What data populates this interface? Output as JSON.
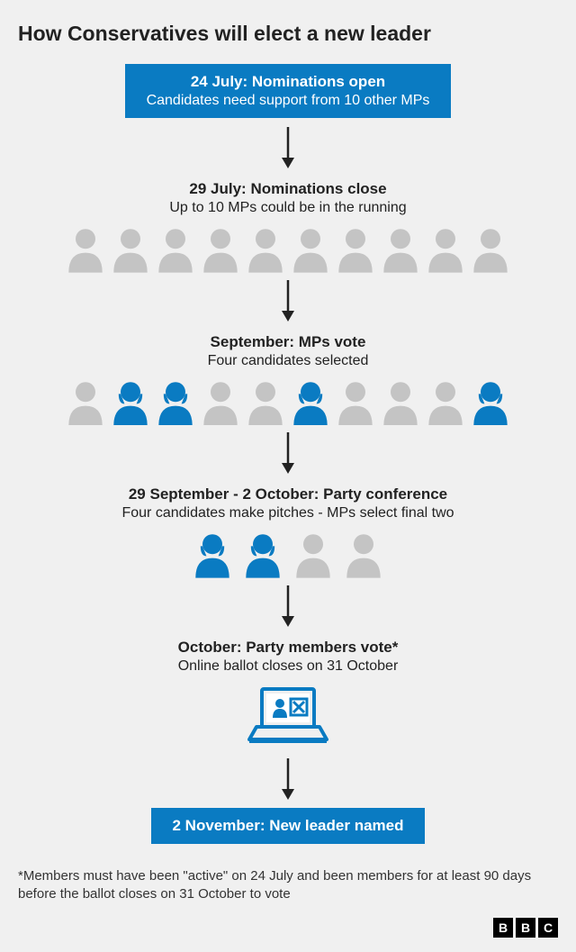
{
  "title": "How Conservatives will elect a new leader",
  "colors": {
    "accent": "#0a7bc2",
    "grey": "#c4c4c4",
    "text": "#222222",
    "background": "#f0f0f0"
  },
  "steps": [
    {
      "id": "s1",
      "style": "box",
      "title": "24 July: Nominations open",
      "sub": "Candidates need support from 10 other MPs"
    },
    {
      "id": "s2",
      "style": "plain",
      "title": "29 July: Nominations close",
      "sub": "Up to 10 MPs could be in the running",
      "people": {
        "count": 10,
        "highlighted": [],
        "shapes": [
          "a",
          "a",
          "a",
          "a",
          "a",
          "a",
          "a",
          "a",
          "a",
          "a"
        ]
      }
    },
    {
      "id": "s3",
      "style": "plain",
      "title": "September: MPs vote",
      "sub": "Four candidates selected",
      "people": {
        "count": 10,
        "highlighted": [
          1,
          2,
          5,
          9
        ],
        "shapes": [
          "a",
          "b",
          "b",
          "a",
          "a",
          "b",
          "a",
          "a",
          "a",
          "b"
        ]
      }
    },
    {
      "id": "s4",
      "style": "plain",
      "title": "29 September - 2 October: Party conference",
      "sub": "Four candidates make pitches - MPs select final two",
      "people": {
        "count": 4,
        "highlighted": [
          0,
          1
        ],
        "shapes": [
          "b",
          "b",
          "a",
          "a"
        ]
      }
    },
    {
      "id": "s5",
      "style": "plain",
      "title": "October: Party members vote*",
      "sub": "Online ballot closes on 31 October",
      "laptop": true
    },
    {
      "id": "s6",
      "style": "box",
      "title": "2 November: New leader named",
      "sub": ""
    }
  ],
  "footnote": "*Members must have been \"active\" on 24 July and been members for at least 90 days before the ballot closes on 31 October to vote",
  "logo": [
    "B",
    "B",
    "C"
  ]
}
